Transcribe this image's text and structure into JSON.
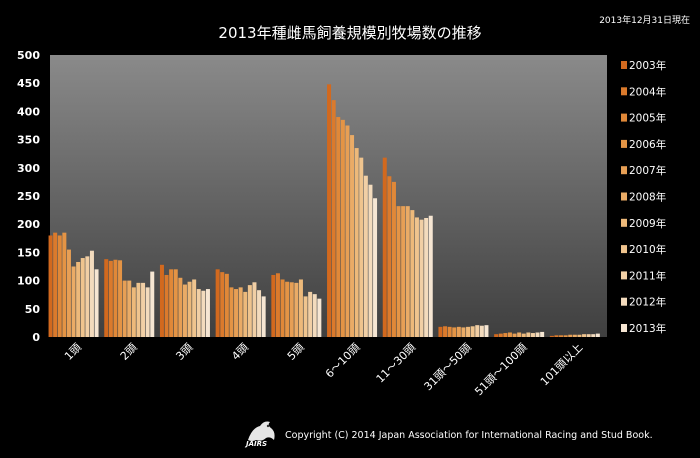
{
  "header": {
    "title": "2013年種雌馬飼養規模別牧場数の推移",
    "as_of": "2013年12月31日現在"
  },
  "footer": {
    "copyright": "Copyright (C) 2014 Japan Association for International Racing and Stud Book.",
    "logo_text": "JAIRS"
  },
  "chart_data": {
    "type": "bar",
    "title": "2013年種雌馬飼養規模別牧場数の推移",
    "categories": [
      "1頭",
      "2頭",
      "3頭",
      "4頭",
      "5頭",
      "6～10頭",
      "11～30頭",
      "31頭～50頭",
      "51頭～100頭",
      "101頭以上"
    ],
    "ylim": [
      0,
      500
    ],
    "yticks": [
      0,
      50,
      100,
      150,
      200,
      250,
      300,
      350,
      400,
      450,
      500
    ],
    "grid": false,
    "legend": "right",
    "series": [
      {
        "name": "2003年",
        "color": "#d2691e",
        "values": [
          180,
          138,
          128,
          120,
          110,
          448,
          318,
          18,
          5,
          2
        ]
      },
      {
        "name": "2004年",
        "color": "#db7a2c",
        "values": [
          185,
          135,
          110,
          115,
          113,
          420,
          285,
          19,
          6,
          3
        ]
      },
      {
        "name": "2005年",
        "color": "#e08838",
        "values": [
          180,
          137,
          120,
          112,
          102,
          390,
          275,
          18,
          7,
          3
        ]
      },
      {
        "name": "2006年",
        "color": "#e49445",
        "values": [
          185,
          136,
          120,
          88,
          98,
          385,
          232,
          17,
          8,
          3
        ]
      },
      {
        "name": "2007年",
        "color": "#e79f55",
        "values": [
          155,
          100,
          105,
          85,
          97,
          375,
          232,
          18,
          6,
          4
        ]
      },
      {
        "name": "2008年",
        "color": "#eaab66",
        "values": [
          125,
          100,
          93,
          88,
          96,
          358,
          232,
          17,
          8,
          4
        ]
      },
      {
        "name": "2009年",
        "color": "#edb97a",
        "values": [
          133,
          88,
          98,
          80,
          102,
          335,
          225,
          18,
          6,
          4
        ]
      },
      {
        "name": "2010年",
        "color": "#efc48e",
        "values": [
          140,
          96,
          102,
          92,
          72,
          318,
          212,
          19,
          8,
          5
        ]
      },
      {
        "name": "2011年",
        "color": "#f1cfa5",
        "values": [
          143,
          96,
          85,
          97,
          80,
          286,
          208,
          21,
          7,
          5
        ]
      },
      {
        "name": "2012年",
        "color": "#f3dbbd",
        "values": [
          153,
          88,
          82,
          83,
          76,
          270,
          211,
          20,
          8,
          5
        ]
      },
      {
        "name": "2013年",
        "color": "#f6e6d3",
        "values": [
          120,
          116,
          85,
          72,
          68,
          246,
          215,
          21,
          9,
          6
        ]
      }
    ]
  }
}
